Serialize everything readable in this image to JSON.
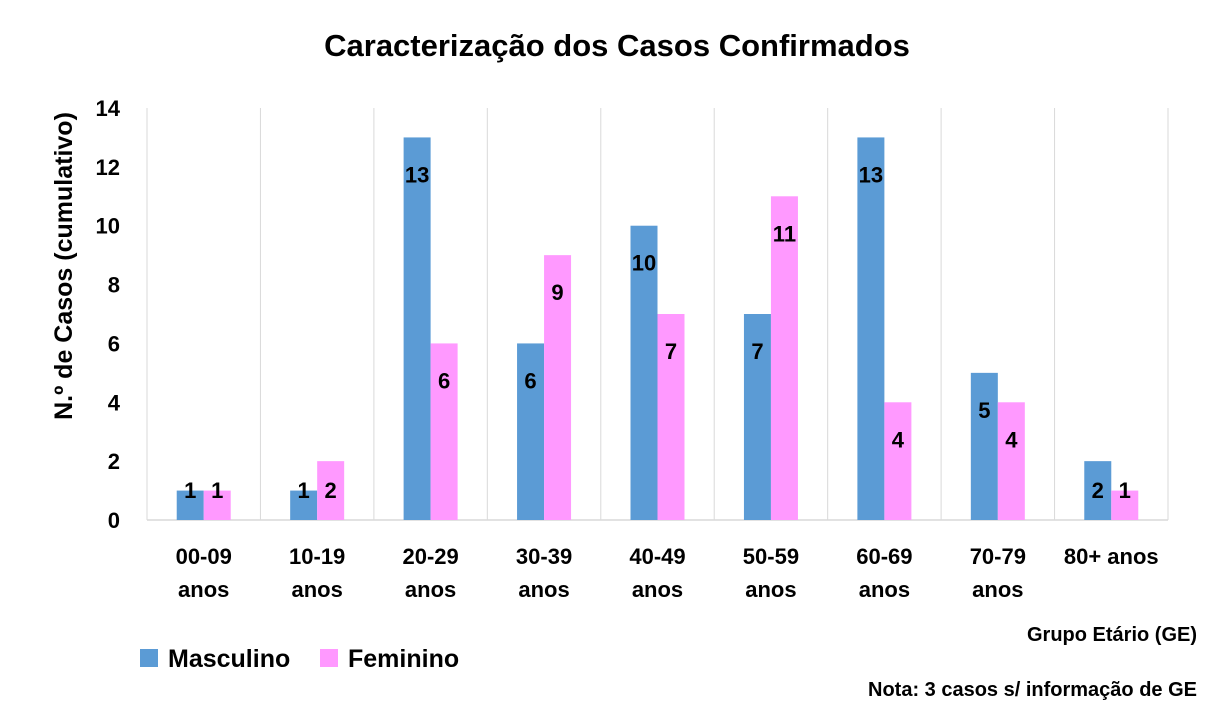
{
  "chart_data": {
    "type": "bar",
    "title": "Caracterização dos Casos Confirmados",
    "xlabel": "Grupo Etário (GE)",
    "ylabel": "N.º de Casos (cumulativo)",
    "note": "Nota: 3 casos s/ informação de GE",
    "categories": [
      [
        "00-09",
        "anos"
      ],
      [
        "10-19",
        "anos"
      ],
      [
        "20-29",
        "anos"
      ],
      [
        "30-39",
        "anos"
      ],
      [
        "40-49",
        "anos"
      ],
      [
        "50-59",
        "anos"
      ],
      [
        "60-69",
        "anos"
      ],
      [
        "70-79",
        "anos"
      ],
      [
        "80+ anos"
      ]
    ],
    "series": [
      {
        "name": "Masculino",
        "color": "#5b9bd5",
        "values": [
          1,
          1,
          13,
          6,
          10,
          7,
          13,
          5,
          2
        ]
      },
      {
        "name": "Feminino",
        "color": "#ff99ff",
        "values": [
          1,
          2,
          6,
          9,
          7,
          11,
          4,
          4,
          1
        ]
      }
    ],
    "ylim": [
      0,
      14
    ],
    "yticks": [
      0,
      2,
      4,
      6,
      8,
      10,
      12,
      14
    ],
    "grid": "vertical category separators",
    "legend": "bottom-left"
  }
}
